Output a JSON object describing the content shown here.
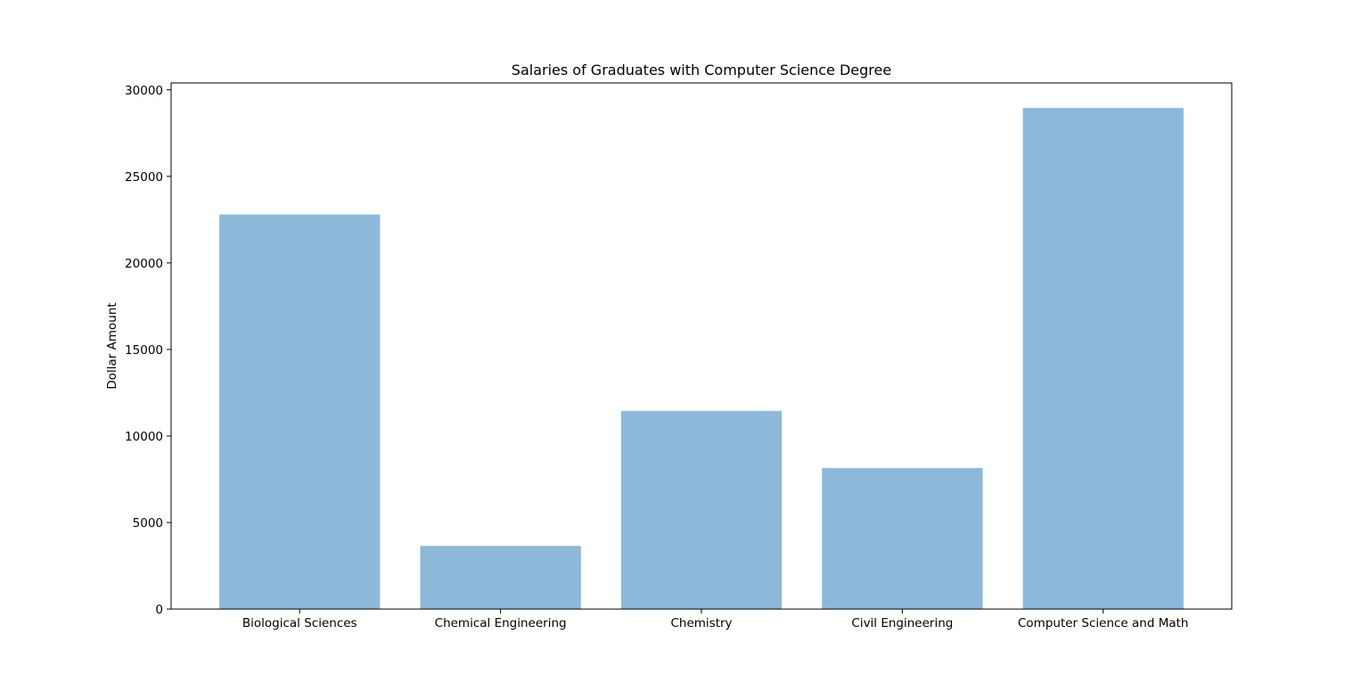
{
  "chart_data": {
    "type": "bar",
    "title": "Salaries of Graduates with Computer Science Degree",
    "xlabel": "",
    "ylabel": "Dollar Amount",
    "categories": [
      "Biological Sciences",
      "Chemical Engineering",
      "Chemistry",
      "Civil Engineering",
      "Computer Science and Math"
    ],
    "values": [
      22800,
      3650,
      11450,
      8150,
      28950
    ],
    "ylim": [
      0,
      30400
    ],
    "yticks": [
      0,
      5000,
      10000,
      15000,
      20000,
      25000,
      30000
    ],
    "bar_color": "#8db8d9",
    "grid": false,
    "legend": "none"
  }
}
